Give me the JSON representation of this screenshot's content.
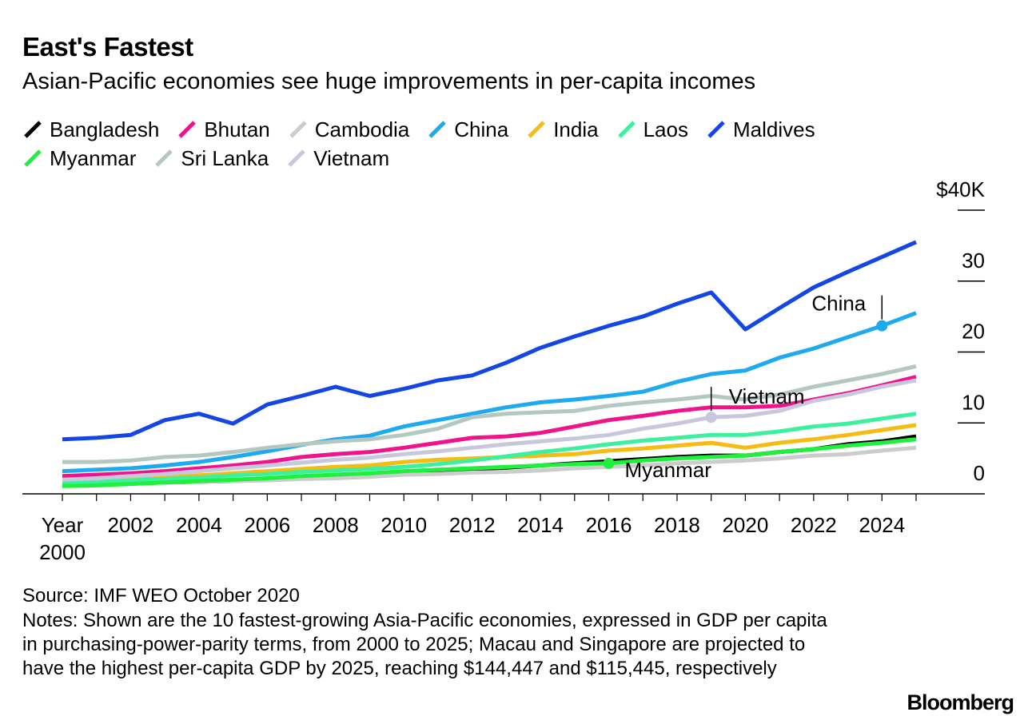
{
  "chart_data": {
    "type": "line",
    "title": "East's Fastest",
    "subtitle": "Asian-Pacific economies see huge improvements in per-capita incomes",
    "x": [
      2000,
      2001,
      2002,
      2003,
      2004,
      2005,
      2006,
      2007,
      2008,
      2009,
      2010,
      2011,
      2012,
      2013,
      2014,
      2015,
      2016,
      2017,
      2018,
      2019,
      2020,
      2021,
      2022,
      2023,
      2024,
      2025
    ],
    "xlim": [
      2000,
      2025
    ],
    "xticks": [
      {
        "value": 2000,
        "label": "Year 2000"
      },
      2002,
      2004,
      2006,
      2008,
      2010,
      2012,
      2014,
      2016,
      2018,
      2020,
      2022,
      2024
    ],
    "ylim": [
      0,
      40
    ],
    "yticks": [
      {
        "value": 40,
        "label": "$40K"
      },
      30,
      20,
      10,
      0
    ],
    "series": [
      {
        "name": "Bangladesh",
        "color": "#000000",
        "values": [
          1.3,
          1.4,
          1.5,
          1.6,
          1.7,
          1.8,
          2.0,
          2.2,
          2.4,
          2.6,
          2.9,
          3.1,
          3.4,
          3.7,
          4.0,
          4.3,
          4.6,
          4.9,
          5.2,
          5.4,
          5.4,
          5.9,
          6.3,
          7.0,
          7.4,
          8.1
        ]
      },
      {
        "name": "Bhutan",
        "color": "#f0148c",
        "values": [
          2.5,
          2.7,
          2.9,
          3.2,
          3.6,
          4.0,
          4.5,
          5.2,
          5.6,
          5.9,
          6.5,
          7.2,
          7.9,
          8.1,
          8.6,
          9.5,
          10.4,
          11.0,
          11.7,
          12.2,
          12.2,
          12.4,
          13.3,
          14.2,
          15.3,
          16.5
        ]
      },
      {
        "name": "Cambodia",
        "color": "#cccccc",
        "values": [
          1.3,
          1.4,
          1.5,
          1.6,
          1.7,
          1.8,
          1.9,
          2.1,
          2.2,
          2.4,
          2.7,
          2.8,
          3.0,
          3.1,
          3.3,
          3.6,
          3.8,
          4.0,
          4.3,
          4.5,
          4.7,
          5.0,
          5.4,
          5.6,
          6.1,
          6.5
        ]
      },
      {
        "name": "China",
        "color": "#1eaaf0",
        "values": [
          3.2,
          3.4,
          3.6,
          4.0,
          4.5,
          5.2,
          6.0,
          6.9,
          7.7,
          8.2,
          9.5,
          10.4,
          11.3,
          12.2,
          12.9,
          13.3,
          13.8,
          14.4,
          15.8,
          16.9,
          17.4,
          19.2,
          20.5,
          22.1,
          23.7,
          25.5
        ]
      },
      {
        "name": "India",
        "color": "#f5bc14",
        "values": [
          1.8,
          1.9,
          2.1,
          2.3,
          2.6,
          2.9,
          3.2,
          3.5,
          3.8,
          4.0,
          4.5,
          4.8,
          5.0,
          5.2,
          5.4,
          5.6,
          6.1,
          6.4,
          6.8,
          7.2,
          6.5,
          7.2,
          7.7,
          8.3,
          9.0,
          9.7
        ]
      },
      {
        "name": "Laos",
        "color": "#3cf0a0",
        "values": [
          1.6,
          1.7,
          1.9,
          2.1,
          2.3,
          2.6,
          2.8,
          3.1,
          3.3,
          3.5,
          3.8,
          4.2,
          4.7,
          5.3,
          5.9,
          6.4,
          7.0,
          7.5,
          7.9,
          8.3,
          8.3,
          8.8,
          9.5,
          9.9,
          10.6,
          11.3
        ]
      },
      {
        "name": "Maldives",
        "color": "#1446e6",
        "values": [
          7.7,
          7.9,
          8.3,
          10.4,
          11.3,
          9.9,
          12.6,
          13.8,
          15.1,
          13.8,
          14.8,
          16.0,
          16.7,
          18.5,
          20.6,
          22.2,
          23.7,
          25.0,
          26.8,
          28.4,
          23.2,
          26.2,
          29.1,
          31.3,
          33.4,
          35.5
        ]
      },
      {
        "name": "Myanmar",
        "color": "#1ef03c",
        "values": [
          1.1,
          1.2,
          1.4,
          1.6,
          1.8,
          2.0,
          2.2,
          2.5,
          2.7,
          2.9,
          3.2,
          3.4,
          3.6,
          3.8,
          4.0,
          4.2,
          4.3,
          4.7,
          5.0,
          5.2,
          5.4,
          5.9,
          6.3,
          6.8,
          7.2,
          7.7
        ]
      },
      {
        "name": "Sri Lanka",
        "color": "#b4c8c0",
        "values": [
          4.5,
          4.5,
          4.7,
          5.2,
          5.4,
          5.9,
          6.5,
          7.0,
          7.4,
          7.7,
          8.3,
          9.2,
          10.8,
          11.3,
          11.5,
          11.7,
          12.4,
          12.9,
          13.3,
          13.8,
          13.3,
          14.0,
          15.1,
          16.0,
          16.9,
          18.0
        ]
      },
      {
        "name": "Vietnam",
        "color": "#c8c8dc",
        "values": [
          2.0,
          2.2,
          2.5,
          2.8,
          3.2,
          3.6,
          4.0,
          4.4,
          4.8,
          5.1,
          5.6,
          6.0,
          6.5,
          7.0,
          7.4,
          7.8,
          8.3,
          9.2,
          9.9,
          10.8,
          11.0,
          11.7,
          13.1,
          14.0,
          15.1,
          16.0
        ]
      }
    ],
    "annotations": [
      {
        "text": "China",
        "series": 3,
        "x": 2024,
        "placement": "above-left"
      },
      {
        "text": "Vietnam",
        "series": 9,
        "x": 2019,
        "placement": "above-right"
      },
      {
        "text": "Myanmar",
        "series": 7,
        "x": 2016,
        "placement": "below-right"
      }
    ],
    "source": "Source: IMF WEO October 2020",
    "notes": "Notes: Shown are the 10 fastest-growing Asia-Pacific economies, expressed in GDP per capita in purchasing-power-parity terms, from 2000 to 2025; Macau and Singapore are projected to have the highest per-capita GDP by 2025, reaching $144,447 and $115,445, respectively",
    "logo": "Bloomberg"
  }
}
